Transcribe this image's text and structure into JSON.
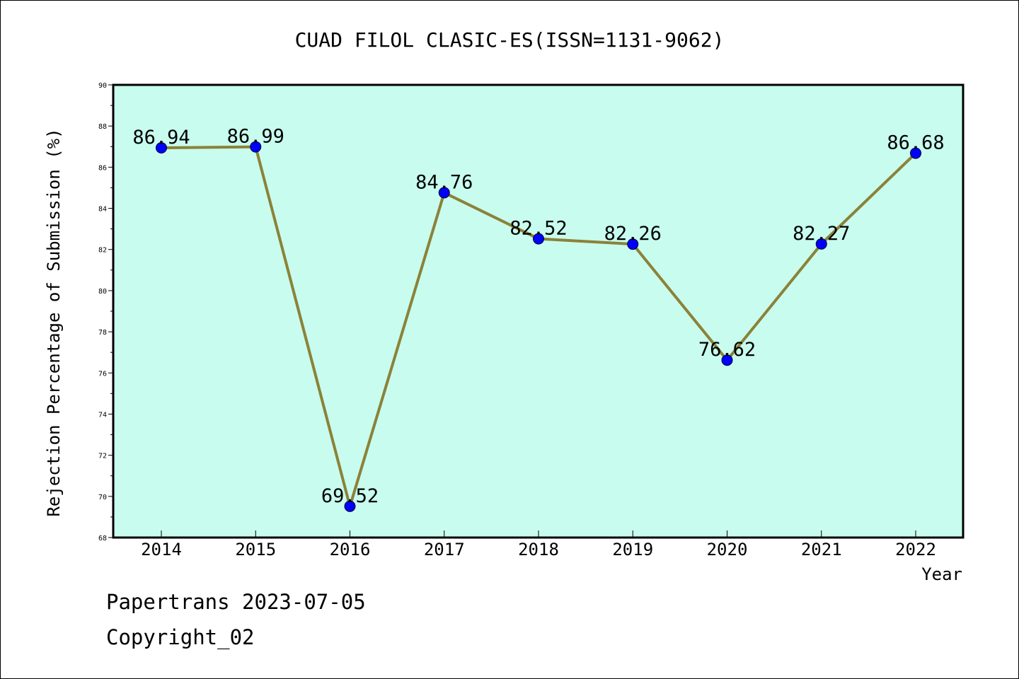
{
  "chart_data": {
    "type": "line",
    "title": "CUAD FILOL CLASIC-ES(ISSN=1131-9062)",
    "xlabel": "Year",
    "ylabel": "Rejection Percentage of Submission (%)",
    "categories": [
      "2014",
      "2015",
      "2016",
      "2017",
      "2018",
      "2019",
      "2020",
      "2021",
      "2022"
    ],
    "values": [
      86.94,
      86.99,
      69.52,
      84.76,
      82.52,
      82.26,
      76.62,
      82.27,
      86.68
    ],
    "data_labels": [
      "86.94",
      "86.99",
      "69.52",
      "84.76",
      "82.52",
      "82.26",
      "76.62",
      "82.27",
      "86.68"
    ],
    "ylim": [
      68,
      90
    ],
    "yticks": [
      68,
      70,
      72,
      74,
      76,
      78,
      80,
      82,
      84,
      86,
      88,
      90
    ],
    "grid": false,
    "colors": {
      "plot_background": "#c8fcee",
      "line": "#8b8238",
      "marker": "#0000ff"
    }
  },
  "footer": {
    "line1": "Papertrans 2023-07-05",
    "line2": "Copyright_02"
  }
}
